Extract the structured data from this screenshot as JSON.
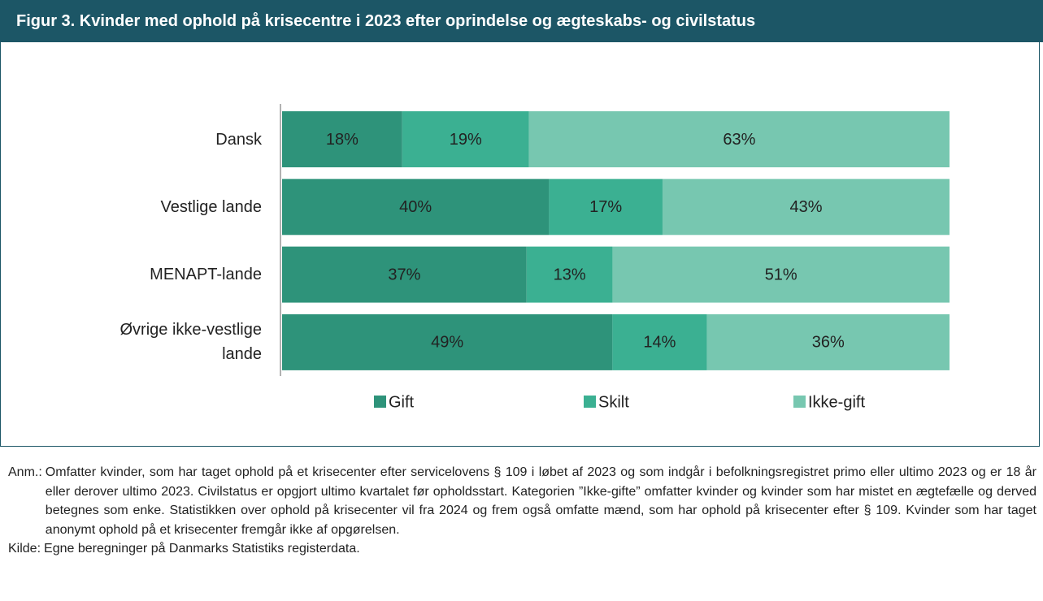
{
  "chart_data": {
    "type": "bar",
    "orientation": "horizontal",
    "stacked": true,
    "title": "Figur 3. Kvinder med ophold på krisecentre i 2023 efter oprindelse og ægteskabs- og civilstatus",
    "categories": [
      "Dansk",
      "Vestlige lande",
      "MENAPT-lande",
      "Øvrige ikke-vestlige lande"
    ],
    "series": [
      {
        "name": "Gift",
        "color": "#2e937a",
        "values": [
          18,
          40,
          37,
          49
        ],
        "value_labels": [
          "18%",
          "40%",
          "37%",
          "49%"
        ]
      },
      {
        "name": "Skilt",
        "color": "#3bb092",
        "values": [
          19,
          17,
          13,
          14
        ],
        "value_labels": [
          "19%",
          "17%",
          "13%",
          "14%"
        ]
      },
      {
        "name": "Ikke-gift",
        "color": "#77c7b0",
        "values": [
          63,
          43,
          51,
          36
        ],
        "value_labels": [
          "63%",
          "43%",
          "51%",
          "36%"
        ]
      }
    ]
  },
  "notes": [
    {
      "label": "Anm.:",
      "text": "Omfatter kvinder, som har taget ophold på et krisecenter efter servicelovens § 109 i løbet af 2023 og som indgår i befolkningsregistret primo eller ultimo 2023 og er 18 år eller derover ultimo 2023. Civilstatus er opgjort ultimo kvartalet før opholdsstart. Kategorien ”Ikke-gifte” omfatter kvinder og kvinder som har mistet en ægtefælle og derved betegnes som enke. Statistikken over ophold på krisecenter vil fra 2024 og frem også omfatte mænd, som har ophold på krisecenter efter § 109. Kvinder som har taget anonymt ophold på et krisecenter fremgår ikke af opgørelsen."
    },
    {
      "label": "Kilde:",
      "text": "Egne beregninger på Danmarks Statistiks registerdata."
    }
  ]
}
